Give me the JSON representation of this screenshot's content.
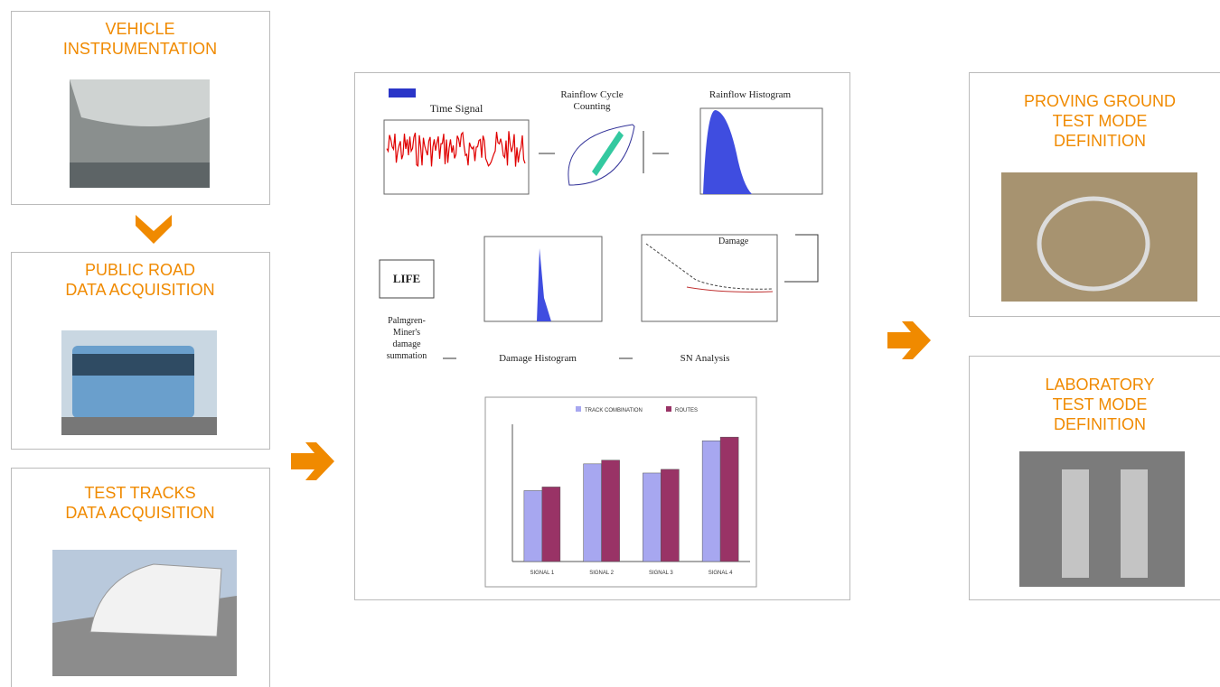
{
  "boxes": [
    {
      "title_lines": [
        "VEHICLE",
        "INSTRUMENTATION"
      ]
    },
    {
      "title_lines": [
        "PUBLIC ROAD",
        "DATA ACQUISITION"
      ]
    },
    {
      "title_lines": [
        "TEST TRACKS",
        "DATA ACQUISITION"
      ]
    },
    {
      "title_lines": [
        "PROVING GROUND",
        "TEST MODE",
        "DEFINITION"
      ]
    },
    {
      "title_lines": [
        "LABORATORY",
        "TEST MODE",
        "DEFINITION"
      ]
    }
  ],
  "analysis": {
    "time_signal": "Time Signal",
    "rainflow_counting": [
      "Rainflow Cycle",
      "Counting"
    ],
    "rainflow_histogram": "Rainflow Histogram",
    "life": "LIFE",
    "palmgren_miner": [
      "Palmgren-",
      "Miner's",
      "damage",
      "summation"
    ],
    "damage_histogram": "Damage Histogram",
    "sn_analysis": "SN Analysis",
    "damage": "Damage"
  },
  "chart_data": {
    "type": "bar",
    "categories": [
      "SIGNAL 1",
      "SIGNAL 2",
      "SIGNAL 3",
      "SIGNAL 4"
    ],
    "series": [
      {
        "name": "TRACK COMBINATION",
        "color": "#a7a7f0",
        "values": [
          0.031,
          0.0427,
          0.0387,
          0.0528
        ]
      },
      {
        "name": "ROUTES",
        "color": "#993366",
        "values": [
          0.0326,
          0.0443,
          0.0403,
          0.0544
        ]
      }
    ],
    "ylim": [
      0,
      0.06
    ]
  }
}
